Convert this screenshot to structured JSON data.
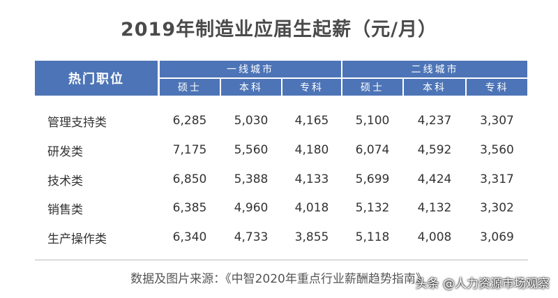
{
  "title": "2019年制造业应届生起薪（元/月）",
  "table": {
    "header": {
      "position": "热门职位",
      "groups": [
        "一线城市",
        "二线城市"
      ],
      "subheaders": [
        "硕士",
        "本科",
        "专科",
        "硕士",
        "本科",
        "专科"
      ]
    },
    "rows": [
      [
        "管理支持类",
        "6,285",
        "5,030",
        "4,165",
        "5,100",
        "4,237",
        "3,307"
      ],
      [
        "研发类",
        "7,175",
        "5,560",
        "4,180",
        "6,074",
        "4,592",
        "3,560"
      ],
      [
        "技术类",
        "6,850",
        "5,388",
        "4,133",
        "5,699",
        "4,424",
        "3,317"
      ],
      [
        "销售类",
        "6,385",
        "4,960",
        "4,018",
        "5,132",
        "4,132",
        "3,302"
      ],
      [
        "生产操作类",
        "6,340",
        "4,733",
        "3,855",
        "5,118",
        "4,008",
        "3,069"
      ]
    ]
  },
  "footer": {
    "source": "数据及图片来源：《中智2020年重点行业薪酬趋势指南》",
    "watermark": "头条 @人力资源市场观察"
  }
}
